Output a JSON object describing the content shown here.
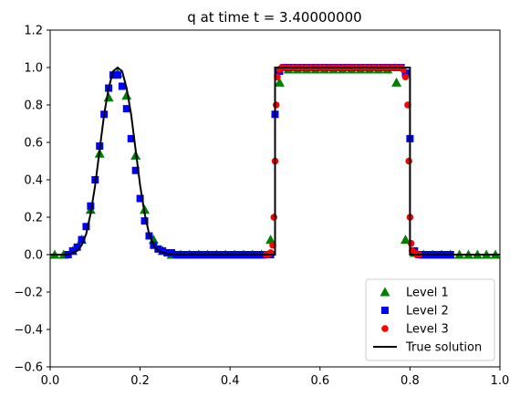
{
  "chart_data": {
    "type": "line",
    "title": "q at time t =     3.40000000",
    "xlabel": "",
    "ylabel": "",
    "xlim": [
      0.0,
      1.0
    ],
    "ylim": [
      -0.6,
      1.2
    ],
    "xticks": [
      "0.0",
      "0.2",
      "0.4",
      "0.6",
      "0.8",
      "1.0"
    ],
    "yticks": [
      "−0.6",
      "−0.4",
      "−0.2",
      "0.0",
      "0.2",
      "0.4",
      "0.6",
      "0.8",
      "1.0",
      "1.2"
    ],
    "grid": false,
    "legend_position": "lower-right",
    "colors": {
      "level1": "#008000",
      "level2": "#0000ff",
      "level3": "#ff0000",
      "true_solution": "#000000"
    },
    "series": [
      {
        "name": "Level 1",
        "marker": "triangle",
        "x": [
          0.01,
          0.03,
          0.05,
          0.07,
          0.09,
          0.11,
          0.13,
          0.15,
          0.17,
          0.19,
          0.21,
          0.23,
          0.25,
          0.27,
          0.29,
          0.31,
          0.33,
          0.35,
          0.37,
          0.39,
          0.41,
          0.43,
          0.45,
          0.47,
          0.49,
          0.51,
          0.53,
          0.55,
          0.57,
          0.59,
          0.61,
          0.63,
          0.65,
          0.67,
          0.69,
          0.71,
          0.73,
          0.75,
          0.77,
          0.79,
          0.81,
          0.83,
          0.85,
          0.87,
          0.89,
          0.91,
          0.93,
          0.95,
          0.97,
          0.99
        ],
        "y": [
          0.0,
          0.0,
          0.02,
          0.08,
          0.24,
          0.54,
          0.84,
          0.97,
          0.85,
          0.53,
          0.24,
          0.08,
          0.02,
          0.0,
          0.0,
          0.0,
          0.0,
          0.0,
          0.0,
          0.0,
          0.0,
          0.0,
          0.0,
          0.0,
          0.08,
          0.92,
          0.99,
          0.99,
          0.99,
          0.99,
          0.99,
          0.99,
          0.99,
          0.99,
          0.99,
          0.99,
          0.99,
          0.99,
          0.92,
          0.08,
          0.01,
          0.0,
          0.0,
          0.0,
          0.0,
          0.0,
          0.0,
          0.0,
          0.0,
          0.0
        ]
      },
      {
        "name": "Level 2",
        "marker": "square",
        "x": [
          0.04,
          0.05,
          0.06,
          0.07,
          0.08,
          0.09,
          0.1,
          0.11,
          0.12,
          0.13,
          0.14,
          0.15,
          0.16,
          0.17,
          0.18,
          0.19,
          0.2,
          0.21,
          0.22,
          0.23,
          0.24,
          0.25,
          0.26,
          0.27,
          0.28,
          0.29,
          0.3,
          0.31,
          0.32,
          0.33,
          0.34,
          0.35,
          0.36,
          0.37,
          0.38,
          0.39,
          0.4,
          0.41,
          0.42,
          0.43,
          0.44,
          0.45,
          0.46,
          0.47,
          0.48,
          0.49,
          0.5,
          0.51,
          0.52,
          0.53,
          0.54,
          0.55,
          0.56,
          0.57,
          0.58,
          0.59,
          0.6,
          0.61,
          0.62,
          0.63,
          0.64,
          0.65,
          0.66,
          0.67,
          0.68,
          0.69,
          0.7,
          0.71,
          0.72,
          0.73,
          0.74,
          0.75,
          0.76,
          0.77,
          0.78,
          0.79,
          0.8,
          0.81,
          0.82,
          0.83,
          0.84,
          0.85,
          0.86,
          0.87,
          0.88,
          0.89
        ],
        "y": [
          0.0,
          0.02,
          0.04,
          0.08,
          0.15,
          0.26,
          0.4,
          0.58,
          0.75,
          0.89,
          0.96,
          0.96,
          0.9,
          0.78,
          0.62,
          0.45,
          0.3,
          0.18,
          0.1,
          0.05,
          0.03,
          0.02,
          0.01,
          0.01,
          0.0,
          0.0,
          0.0,
          0.0,
          0.0,
          0.0,
          0.0,
          0.0,
          0.0,
          0.0,
          0.0,
          0.0,
          0.0,
          0.0,
          0.0,
          0.0,
          0.0,
          0.0,
          0.0,
          0.0,
          0.0,
          0.0,
          0.75,
          0.98,
          1.0,
          1.0,
          1.0,
          1.0,
          1.0,
          1.0,
          1.0,
          1.0,
          1.0,
          1.0,
          1.0,
          1.0,
          1.0,
          1.0,
          1.0,
          1.0,
          1.0,
          1.0,
          1.0,
          1.0,
          1.0,
          1.0,
          1.0,
          1.0,
          1.0,
          1.0,
          1.0,
          0.97,
          0.62,
          0.02,
          0.0,
          0.0,
          0.0,
          0.0,
          0.0,
          0.0,
          0.0,
          0.0
        ]
      },
      {
        "name": "Level 3",
        "marker": "circle",
        "x": [
          0.48,
          0.485,
          0.49,
          0.495,
          0.4975,
          0.5,
          0.5025,
          0.505,
          0.51,
          0.515,
          0.52,
          0.53,
          0.54,
          0.55,
          0.56,
          0.57,
          0.58,
          0.59,
          0.6,
          0.61,
          0.62,
          0.63,
          0.64,
          0.65,
          0.66,
          0.67,
          0.68,
          0.69,
          0.7,
          0.71,
          0.72,
          0.73,
          0.74,
          0.75,
          0.76,
          0.77,
          0.78,
          0.785,
          0.79,
          0.795,
          0.7975,
          0.8,
          0.8025,
          0.805,
          0.81,
          0.815,
          0.82
        ],
        "y": [
          0.0,
          0.0,
          0.01,
          0.05,
          0.2,
          0.5,
          0.8,
          0.95,
          0.99,
          1.0,
          1.0,
          1.0,
          1.0,
          1.0,
          1.0,
          1.0,
          1.0,
          1.0,
          1.0,
          1.0,
          1.0,
          1.0,
          1.0,
          1.0,
          1.0,
          1.0,
          1.0,
          1.0,
          1.0,
          1.0,
          1.0,
          1.0,
          1.0,
          1.0,
          1.0,
          1.0,
          1.0,
          0.99,
          0.95,
          0.8,
          0.5,
          0.2,
          0.06,
          0.02,
          0.01,
          0.0,
          0.0
        ]
      },
      {
        "name": "True solution",
        "marker": "line",
        "x": [
          0.0,
          0.02,
          0.04,
          0.06,
          0.07,
          0.08,
          0.09,
          0.1,
          0.11,
          0.12,
          0.13,
          0.14,
          0.15,
          0.16,
          0.17,
          0.18,
          0.19,
          0.2,
          0.21,
          0.22,
          0.23,
          0.24,
          0.26,
          0.28,
          0.3,
          0.5,
          0.5,
          0.8,
          0.8,
          1.0
        ],
        "y": [
          0.0,
          0.0,
          0.0,
          0.02,
          0.05,
          0.11,
          0.22,
          0.37,
          0.56,
          0.75,
          0.89,
          0.98,
          1.0,
          0.98,
          0.89,
          0.75,
          0.56,
          0.37,
          0.22,
          0.11,
          0.05,
          0.02,
          0.005,
          0.0,
          0.0,
          0.0,
          1.0,
          1.0,
          0.0,
          0.0
        ]
      }
    ]
  }
}
